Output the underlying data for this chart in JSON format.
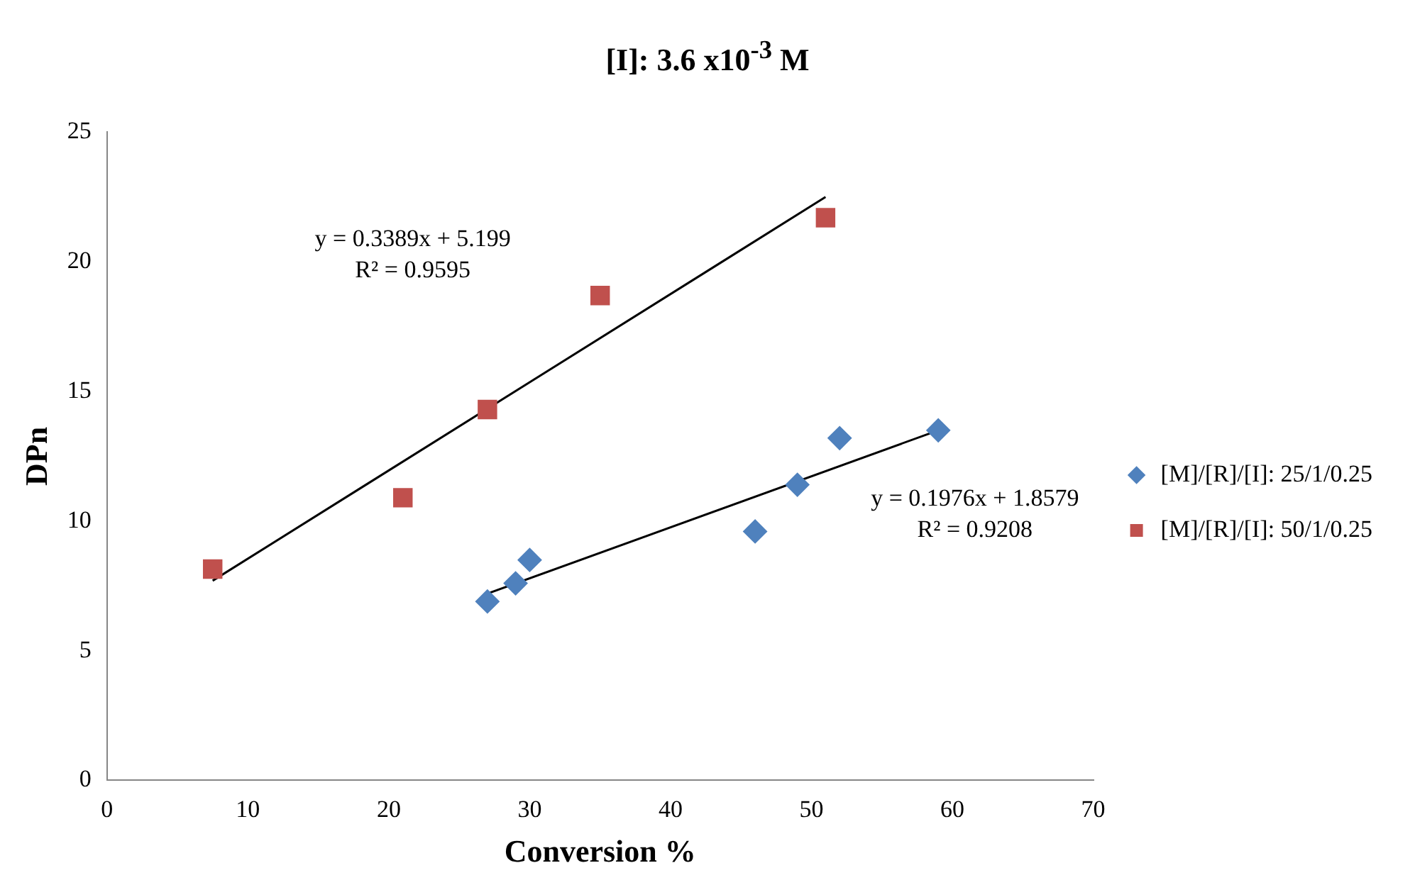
{
  "chart_data": {
    "type": "scatter",
    "title": "[I]: 3.6 x10$^{-3}$ M",
    "xlabel": "Conversion %",
    "ylabel": "DPn",
    "xlim": [
      0,
      70
    ],
    "xticks": [
      0,
      10,
      20,
      30,
      40,
      50,
      60,
      70
    ],
    "ylim": [
      0,
      25
    ],
    "yticks": [
      0,
      5,
      10,
      15,
      20,
      25
    ],
    "grid": false,
    "legend": "right",
    "series": [
      {
        "name": "[M]/[R]/[I]: 25/1/0.25",
        "color": "#4f81bd",
        "marker": "diamond",
        "x": [
          27,
          29,
          30,
          46,
          49,
          52,
          59
        ],
        "values": [
          6.9,
          7.6,
          8.5,
          9.6,
          11.4,
          13.2,
          13.5
        ]
      },
      {
        "name": "[M]/[R]/[I]: 50/1/0.25",
        "color": "#c0504d",
        "marker": "square",
        "x": [
          7.5,
          21,
          27,
          35,
          51
        ],
        "values": [
          8.15,
          10.9,
          14.3,
          18.7,
          21.7
        ]
      },
      {
        "type": "line",
        "color": "#000000",
        "marker": "none",
        "x": [
          27,
          59
        ],
        "values": [
          7.2,
          13.5
        ]
      },
      {
        "type": "line",
        "color": "#000000",
        "marker": "none",
        "x": [
          7.5,
          51
        ],
        "values": [
          7.7,
          22.5
        ]
      }
    ],
    "annotations": [
      "y = 0.3389x + 5.199\nR² = 0.9595",
      "y = 0.1976x + 1.8579\nR² = 0.9208"
    ]
  }
}
